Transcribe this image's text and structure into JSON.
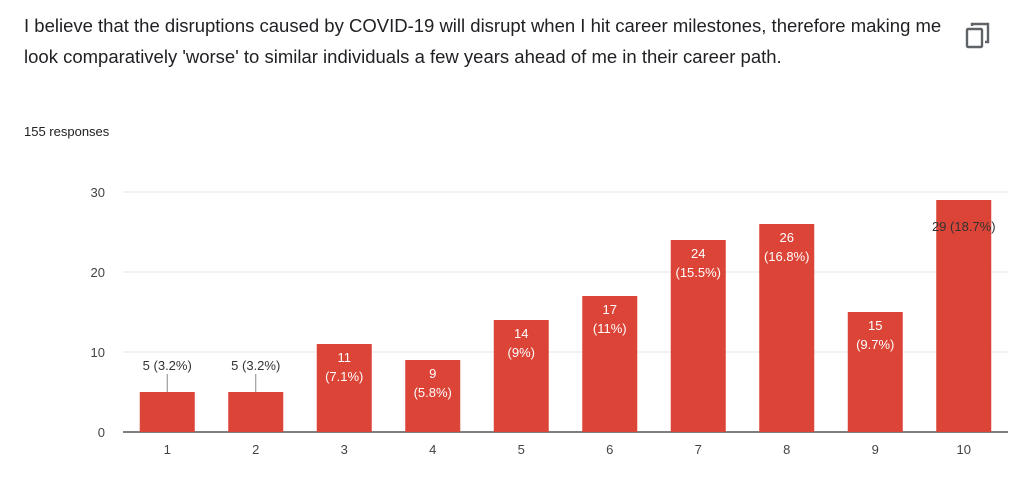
{
  "question": {
    "title": "I believe that the disruptions caused by COVID-19 will disrupt when I hit career milestones, therefore making me look comparatively 'worse' to similar individuals a few years ahead of me in their career path.",
    "response_count": "155 responses",
    "copy_icon": "copy-icon"
  },
  "chart_data": {
    "type": "bar",
    "categories": [
      "1",
      "2",
      "3",
      "4",
      "5",
      "6",
      "7",
      "8",
      "9",
      "10"
    ],
    "values": [
      5,
      5,
      11,
      9,
      14,
      17,
      24,
      26,
      15,
      29
    ],
    "labels": [
      "5 (3.2%)",
      "5 (3.2%)",
      "11 (7.1%)",
      "9 (5.8%)",
      "14 (9%)",
      "17 (11%)",
      "24 (15.5%)",
      "26 (16.8%)",
      "15 (9.7%)",
      "29 (18.7%)"
    ],
    "ylim": [
      0,
      30
    ],
    "yticks": [
      0,
      10,
      20,
      30
    ],
    "grid": true,
    "bar_color": "#db4437",
    "title": "",
    "xlabel": "",
    "ylabel": ""
  }
}
